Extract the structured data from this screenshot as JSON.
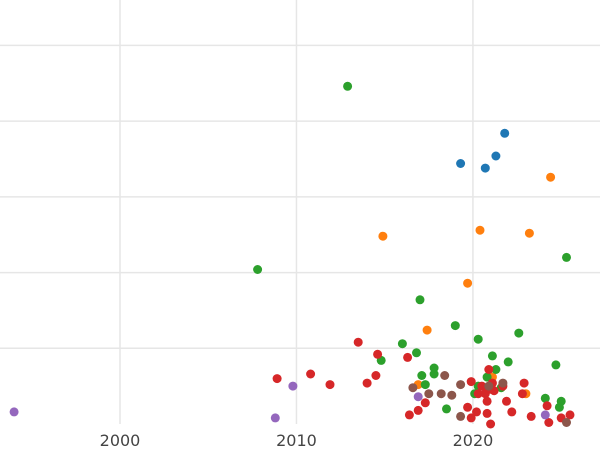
{
  "chart_data": {
    "type": "scatter",
    "title": "",
    "xlabel": "",
    "ylabel": "",
    "xlim": [
      1993.2,
      2027.2
    ],
    "ylim": [
      0,
      28
    ],
    "x_ticks": [
      {
        "value": 2000,
        "label": "2000"
      },
      {
        "value": 2010,
        "label": "2010"
      },
      {
        "value": 2020,
        "label": "2020"
      }
    ],
    "y_gridlines": [
      5,
      10,
      15,
      20,
      25
    ],
    "grid": true,
    "legend": "none",
    "series": [
      {
        "color": "#1f77b4",
        "points": [
          [
            2019.3,
            17.2
          ],
          [
            2020.7,
            16.9
          ],
          [
            2021.3,
            17.7
          ],
          [
            2021.8,
            19.2
          ]
        ]
      },
      {
        "color": "#ff7f0e",
        "points": [
          [
            2014.9,
            12.4
          ],
          [
            2016.9,
            2.6
          ],
          [
            2017.4,
            6.2
          ],
          [
            2019.7,
            9.3
          ],
          [
            2020.4,
            12.8
          ],
          [
            2021.1,
            3.1
          ],
          [
            2023.0,
            2.0
          ],
          [
            2023.2,
            12.6
          ],
          [
            2024.4,
            16.3
          ]
        ]
      },
      {
        "color": "#2ca02c",
        "points": [
          [
            2007.8,
            10.2
          ],
          [
            2012.9,
            22.3
          ],
          [
            2014.8,
            4.2
          ],
          [
            2016.0,
            5.3
          ],
          [
            2016.8,
            4.7
          ],
          [
            2017.0,
            8.2
          ],
          [
            2017.1,
            3.2
          ],
          [
            2017.3,
            2.6
          ],
          [
            2017.8,
            3.7
          ],
          [
            2017.8,
            3.3
          ],
          [
            2018.5,
            1.0
          ],
          [
            2019.0,
            6.5
          ],
          [
            2020.1,
            2.0
          ],
          [
            2020.3,
            2.5
          ],
          [
            2020.3,
            5.6
          ],
          [
            2020.8,
            3.1
          ],
          [
            2021.1,
            4.5
          ],
          [
            2021.3,
            3.6
          ],
          [
            2021.6,
            2.4
          ],
          [
            2022.0,
            4.1
          ],
          [
            2022.6,
            6.0
          ],
          [
            2024.1,
            1.7
          ],
          [
            2024.7,
            3.9
          ],
          [
            2024.9,
            1.1
          ],
          [
            2025.0,
            1.5
          ],
          [
            2025.3,
            11.0
          ]
        ]
      },
      {
        "color": "#d62728",
        "points": [
          [
            2008.9,
            3.0
          ],
          [
            2010.8,
            3.3
          ],
          [
            2011.9,
            2.6
          ],
          [
            2013.5,
            5.4
          ],
          [
            2014.0,
            2.7
          ],
          [
            2014.5,
            3.2
          ],
          [
            2014.6,
            4.6
          ],
          [
            2016.3,
            4.4
          ],
          [
            2016.4,
            0.6
          ],
          [
            2016.9,
            0.9
          ],
          [
            2017.3,
            1.4
          ],
          [
            2019.7,
            1.1
          ],
          [
            2019.9,
            0.4
          ],
          [
            2019.9,
            2.8
          ],
          [
            2020.2,
            0.8
          ],
          [
            2020.3,
            2.0
          ],
          [
            2020.5,
            2.5
          ],
          [
            2020.7,
            2.0
          ],
          [
            2020.8,
            0.7
          ],
          [
            2020.8,
            1.5
          ],
          [
            2020.8,
            2.4
          ],
          [
            2020.9,
            3.6
          ],
          [
            2021.0,
            2.3
          ],
          [
            2021.0,
            0.0
          ],
          [
            2021.1,
            2.7
          ],
          [
            2021.2,
            2.2
          ],
          [
            2021.7,
            2.5
          ],
          [
            2021.9,
            1.5
          ],
          [
            2022.2,
            0.8
          ],
          [
            2022.8,
            2.0
          ],
          [
            2022.9,
            2.7
          ],
          [
            2023.3,
            0.5
          ],
          [
            2024.2,
            1.2
          ],
          [
            2024.3,
            0.1
          ],
          [
            2025.0,
            0.4
          ],
          [
            2025.5,
            0.6
          ]
        ]
      },
      {
        "color": "#9467bd",
        "points": [
          [
            1994.0,
            0.8
          ],
          [
            2008.8,
            0.4
          ],
          [
            2009.8,
            2.5
          ],
          [
            2016.9,
            1.8
          ],
          [
            2024.1,
            0.6
          ]
        ]
      },
      {
        "color": "#8c564b",
        "points": [
          [
            2016.6,
            2.4
          ],
          [
            2017.5,
            2.0
          ],
          [
            2018.2,
            2.0
          ],
          [
            2018.4,
            3.2
          ],
          [
            2018.8,
            1.9
          ],
          [
            2019.3,
            2.6
          ],
          [
            2019.3,
            0.5
          ],
          [
            2020.9,
            2.5
          ],
          [
            2021.7,
            2.7
          ],
          [
            2025.3,
            0.1
          ]
        ]
      }
    ]
  }
}
